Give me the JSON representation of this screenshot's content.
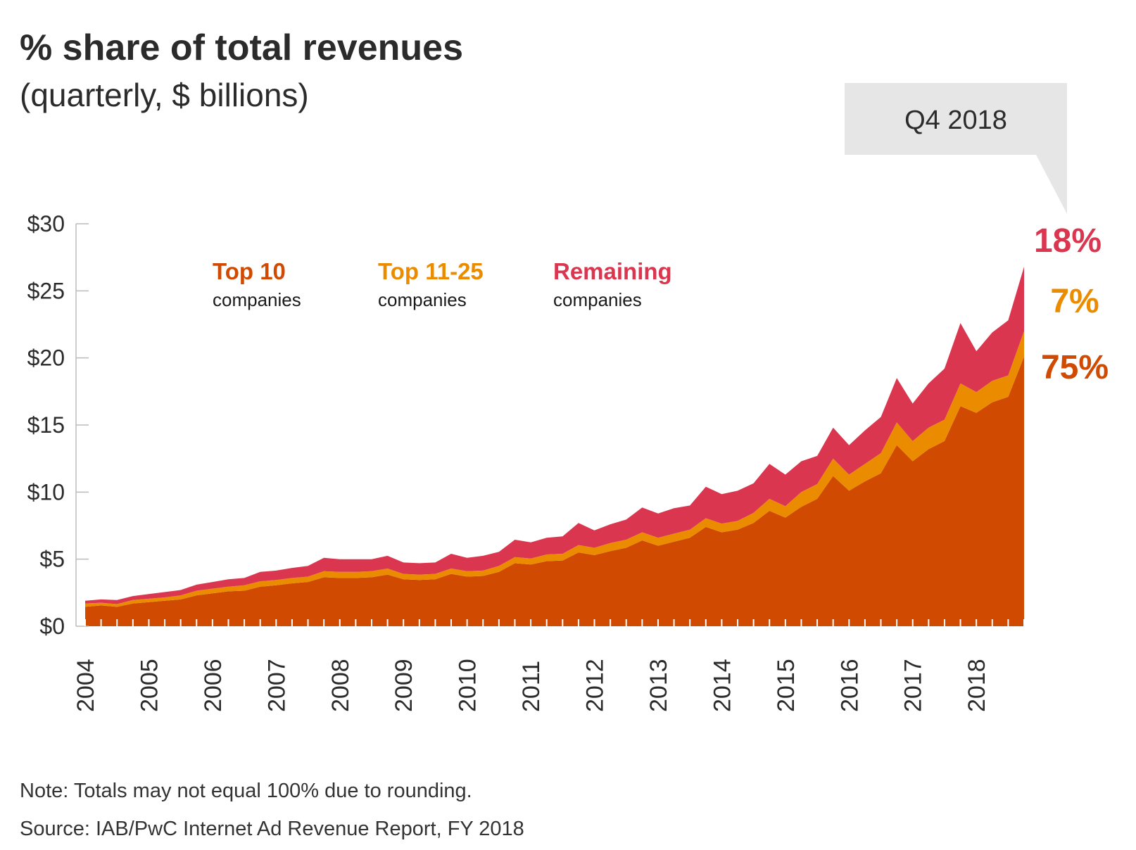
{
  "title": "% share of total revenues",
  "subtitle": "(quarterly, $ billions)",
  "callout": "Q4 2018",
  "note": "Note: Totals may not equal 100% due to rounding.",
  "source": "Source: IAB/PwC Internet Ad Revenue Report,  FY 2018",
  "colors": {
    "top10": "#d04a02",
    "top11_25": "#eb8c00",
    "remaining": "#db3650",
    "axis": "#bbbbbb",
    "text": "#2b2b2b"
  },
  "chart_data": {
    "type": "area",
    "stacked": true,
    "title": "% share of total revenues",
    "subtitle": "(quarterly, $ billions)",
    "ylim": [
      0,
      30
    ],
    "yticks": [
      0,
      5,
      10,
      15,
      20,
      25,
      30
    ],
    "ytick_labels": [
      "$0",
      "$5",
      "$10",
      "$15",
      "$20",
      "$25",
      "$30"
    ],
    "xtick_labels": [
      "2004",
      "2005",
      "2006",
      "2007",
      "2008",
      "2009",
      "2010",
      "2011",
      "2012",
      "2013",
      "2014",
      "2015",
      "2016",
      "2017",
      "2018"
    ],
    "x_unit": "quarter",
    "x_start": "Q1 2004",
    "x_end": "Q4 2018",
    "series": [
      {
        "name": "Top 10",
        "sublabel": "companies",
        "end_label": "75%",
        "values": [
          1.45,
          1.55,
          1.45,
          1.7,
          1.8,
          1.9,
          2.0,
          2.3,
          2.45,
          2.6,
          2.65,
          2.95,
          3.05,
          3.2,
          3.3,
          3.65,
          3.6,
          3.6,
          3.65,
          3.85,
          3.5,
          3.45,
          3.5,
          3.9,
          3.7,
          3.75,
          4.05,
          4.7,
          4.6,
          4.85,
          4.9,
          5.5,
          5.3,
          5.6,
          5.85,
          6.4,
          6.0,
          6.3,
          6.6,
          7.4,
          7.0,
          7.2,
          7.7,
          8.6,
          8.1,
          8.9,
          9.5,
          11.2,
          10.1,
          10.8,
          11.4,
          13.5,
          12.3,
          13.2,
          13.8,
          16.4,
          15.9,
          16.7,
          17.1,
          20.1
        ]
      },
      {
        "name": "Top 11-25",
        "sublabel": "companies",
        "end_label": "7%",
        "values": [
          0.25,
          0.2,
          0.2,
          0.25,
          0.25,
          0.25,
          0.3,
          0.35,
          0.35,
          0.35,
          0.4,
          0.4,
          0.4,
          0.4,
          0.4,
          0.45,
          0.45,
          0.45,
          0.45,
          0.45,
          0.4,
          0.4,
          0.4,
          0.4,
          0.4,
          0.4,
          0.45,
          0.45,
          0.45,
          0.5,
          0.5,
          0.55,
          0.55,
          0.6,
          0.6,
          0.6,
          0.6,
          0.6,
          0.6,
          0.65,
          0.65,
          0.65,
          0.75,
          0.9,
          0.85,
          1.1,
          1.1,
          1.3,
          1.2,
          1.3,
          1.5,
          1.7,
          1.5,
          1.6,
          1.6,
          1.7,
          1.55,
          1.6,
          1.6,
          1.9
        ]
      },
      {
        "name": "Remaining",
        "sublabel": "companies",
        "end_label": "18%",
        "values": [
          0.2,
          0.25,
          0.3,
          0.3,
          0.35,
          0.4,
          0.4,
          0.45,
          0.5,
          0.55,
          0.55,
          0.7,
          0.7,
          0.75,
          0.8,
          1.0,
          0.95,
          0.95,
          0.9,
          0.95,
          0.85,
          0.85,
          0.85,
          1.1,
          1.0,
          1.1,
          1.05,
          1.3,
          1.2,
          1.25,
          1.3,
          1.65,
          1.3,
          1.4,
          1.5,
          1.85,
          1.8,
          1.9,
          1.8,
          2.35,
          2.2,
          2.25,
          2.2,
          2.6,
          2.35,
          2.3,
          2.1,
          2.3,
          2.2,
          2.5,
          2.7,
          3.3,
          2.8,
          3.3,
          3.8,
          4.5,
          3.05,
          3.6,
          4.1,
          4.8
        ]
      }
    ]
  }
}
